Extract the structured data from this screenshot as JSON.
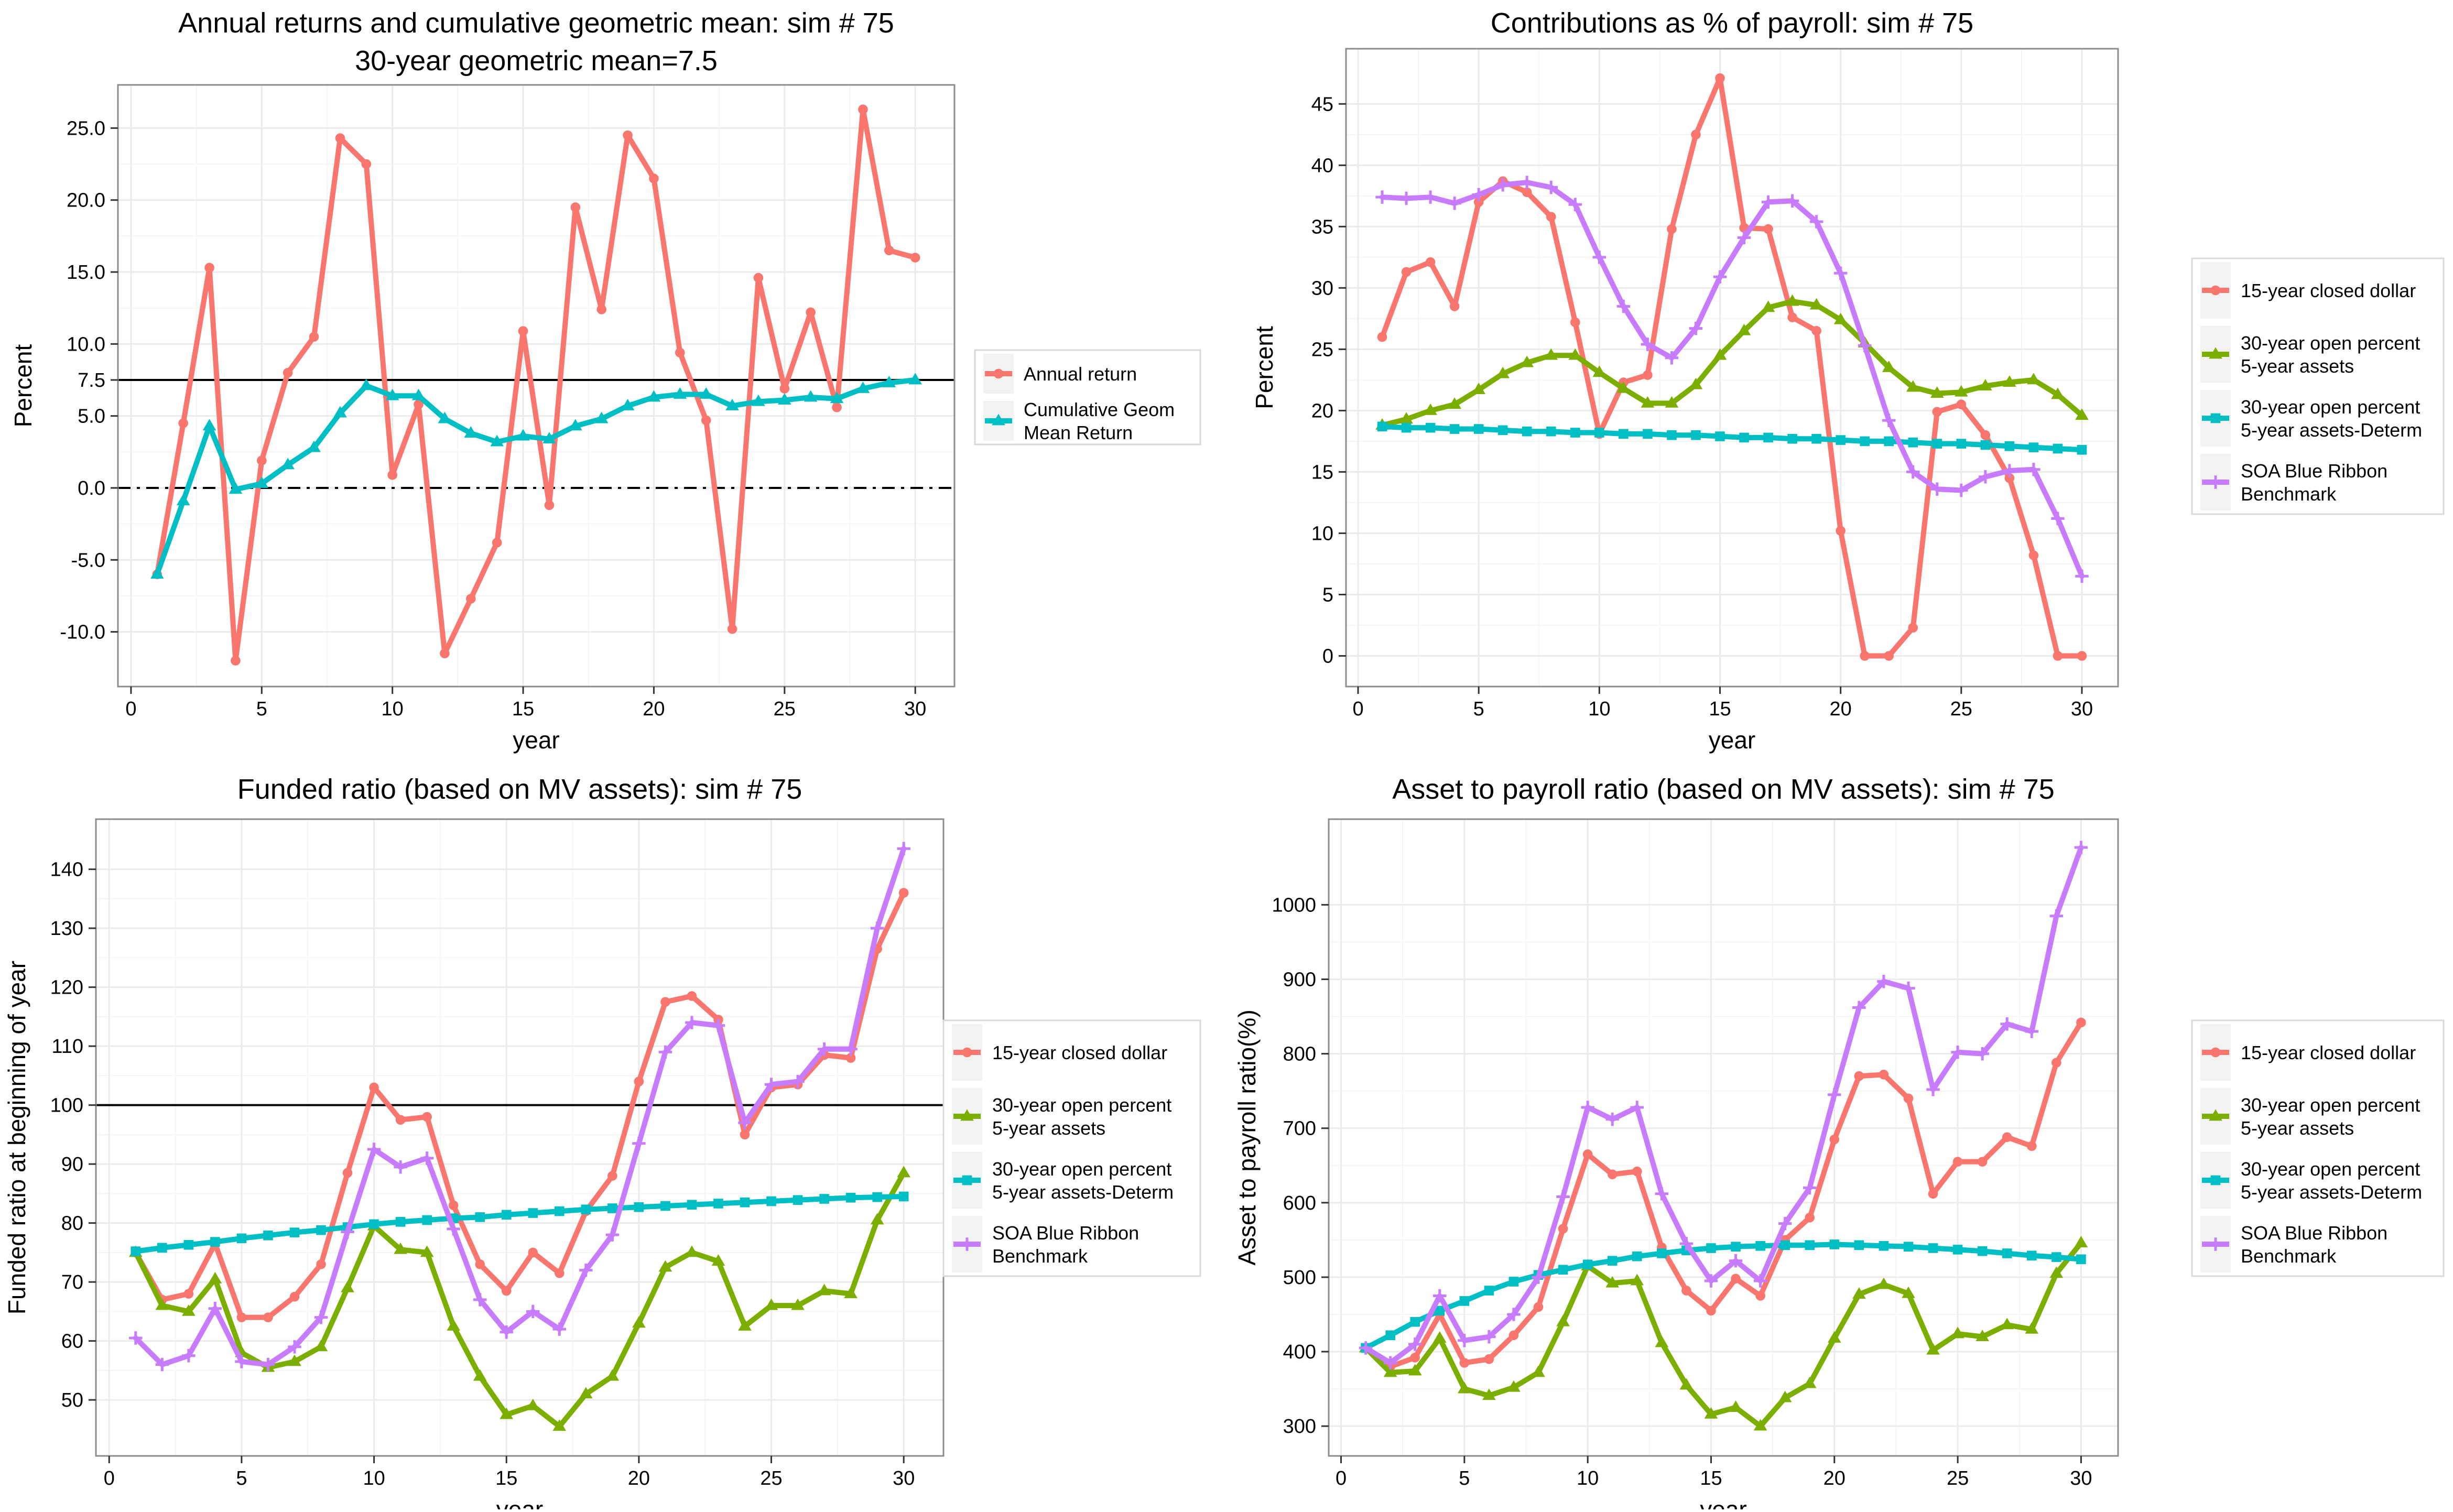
{
  "colors": {
    "red": "#F8766D",
    "green": "#7CAE00",
    "cyan": "#00BFC4",
    "purple": "#C77CFF",
    "panel_border": "#8c8c8c",
    "grid_major": "#ebebeb",
    "grid_minor": "#f5f5f5"
  },
  "chart_data": [
    {
      "type": "line",
      "title": "Annual returns and cumulative geometric mean: sim # 75",
      "subtitle": "30-year geometric mean=7.5",
      "xlabel": "year",
      "ylabel": "Percent",
      "xlim": [
        -0.5,
        31.5
      ],
      "ylim": [
        -13.8,
        28.0
      ],
      "x_ticks": [
        0,
        5,
        10,
        15,
        20,
        25,
        30
      ],
      "y_ticks": [
        -10,
        -5,
        0,
        5,
        7.5,
        10,
        15,
        20,
        25
      ],
      "y_tick_labels": [
        "-10.0",
        "-5.0",
        "0.0",
        "5.0",
        "7.5",
        "10.0",
        "15.0",
        "20.0",
        "25.0"
      ],
      "grid": true,
      "legend_position": "right",
      "reference_lines": [
        {
          "y": 7.5,
          "style": "solid"
        },
        {
          "y": 0,
          "style": "dashdot"
        }
      ],
      "x": [
        1,
        2,
        3,
        4,
        5,
        6,
        7,
        8,
        9,
        10,
        11,
        12,
        13,
        14,
        15,
        16,
        17,
        18,
        19,
        20,
        21,
        22,
        23,
        24,
        25,
        26,
        27,
        28,
        29,
        30
      ],
      "series": [
        {
          "name": "Annual return",
          "color": "red",
          "marker": "circle",
          "values": [
            -6.0,
            4.5,
            15.3,
            -12.0,
            1.9,
            8.0,
            10.5,
            24.3,
            22.5,
            0.9,
            5.8,
            -11.5,
            -7.7,
            -3.8,
            10.9,
            -1.2,
            19.5,
            12.4,
            24.5,
            21.5,
            9.4,
            4.7,
            -9.8,
            14.6,
            6.9,
            12.2,
            5.6,
            26.3,
            16.5,
            16.0
          ]
        },
        {
          "name": "Cumulative Geom Mean Return",
          "color": "cyan",
          "marker": "triangle",
          "values": [
            -6.0,
            -0.9,
            4.3,
            -0.1,
            0.3,
            1.6,
            2.8,
            5.2,
            7.1,
            6.4,
            6.4,
            4.8,
            3.8,
            3.2,
            3.6,
            3.4,
            4.3,
            4.8,
            5.7,
            6.3,
            6.5,
            6.5,
            5.7,
            6.0,
            6.1,
            6.3,
            6.2,
            6.9,
            7.3,
            7.5
          ]
        }
      ],
      "legend_labels": [
        "Annual return",
        "Cumulative Geom\nMean Return"
      ]
    },
    {
      "type": "line",
      "title": "Contributions as % of payroll: sim # 75",
      "xlabel": "year",
      "ylabel": "Percent",
      "xlim": [
        -0.5,
        31.5
      ],
      "ylim": [
        -2.5,
        49.5
      ],
      "x_ticks": [
        0,
        5,
        10,
        15,
        20,
        25,
        30
      ],
      "y_ticks": [
        0,
        5,
        10,
        15,
        20,
        25,
        30,
        35,
        40,
        45
      ],
      "y_tick_labels": [
        "0",
        "5",
        "10",
        "15",
        "20",
        "25",
        "30",
        "35",
        "40",
        "45"
      ],
      "grid": true,
      "legend_position": "right",
      "reference_lines": [],
      "x": [
        1,
        2,
        3,
        4,
        5,
        6,
        7,
        8,
        9,
        10,
        11,
        12,
        13,
        14,
        15,
        16,
        17,
        18,
        19,
        20,
        21,
        22,
        23,
        24,
        25,
        26,
        27,
        28,
        29,
        30
      ],
      "series": [
        {
          "name": "15-year closed dollar",
          "color": "red",
          "marker": "circle",
          "values": [
            26.0,
            31.3,
            32.1,
            28.5,
            37.0,
            38.7,
            37.8,
            35.8,
            27.2,
            18.1,
            22.3,
            22.9,
            34.8,
            42.5,
            47.1,
            34.9,
            34.8,
            27.6,
            26.5,
            10.2,
            0.0,
            0.0,
            2.3,
            19.9,
            20.5,
            18.0,
            14.5,
            8.2,
            0.0,
            0.0
          ]
        },
        {
          "name": "30-year open percent 5-year assets",
          "color": "green",
          "marker": "triangle",
          "values": [
            18.8,
            19.3,
            20.0,
            20.5,
            21.7,
            23.0,
            23.9,
            24.5,
            24.5,
            23.1,
            21.8,
            20.6,
            20.6,
            22.1,
            24.5,
            26.5,
            28.4,
            28.9,
            28.6,
            27.4,
            25.5,
            23.5,
            21.9,
            21.4,
            21.5,
            22.0,
            22.3,
            22.5,
            21.3,
            19.6
          ]
        },
        {
          "name": "30-year open percent 5-year assets-Determ",
          "color": "cyan",
          "marker": "square",
          "values": [
            18.7,
            18.6,
            18.6,
            18.5,
            18.5,
            18.4,
            18.3,
            18.3,
            18.2,
            18.2,
            18.1,
            18.1,
            18.0,
            18.0,
            17.9,
            17.8,
            17.8,
            17.7,
            17.7,
            17.6,
            17.5,
            17.5,
            17.4,
            17.3,
            17.3,
            17.2,
            17.1,
            17.0,
            16.9,
            16.8
          ]
        },
        {
          "name": "SOA Blue Ribbon Benchmark",
          "color": "purple",
          "marker": "plus",
          "values": [
            37.4,
            37.3,
            37.4,
            36.9,
            37.6,
            38.4,
            38.6,
            38.2,
            36.8,
            32.5,
            28.5,
            25.4,
            24.3,
            26.7,
            30.9,
            34.1,
            37.0,
            37.1,
            35.4,
            31.2,
            25.3,
            19.2,
            15.0,
            13.6,
            13.5,
            14.6,
            15.1,
            15.2,
            11.2,
            6.5
          ]
        }
      ],
      "legend_labels": [
        "15-year closed dollar",
        "30-year open percent\n 5-year assets",
        "30-year open percent\n 5-year assets-Determ",
        "SOA Blue Ribbon\n Benchmark"
      ]
    },
    {
      "type": "line",
      "title": "Funded ratio (based on MV assets): sim # 75",
      "xlabel": "year",
      "ylabel": "Funded ratio at beginning of year",
      "xlim": [
        -0.5,
        31.5
      ],
      "ylim": [
        40.5,
        148.5
      ],
      "x_ticks": [
        0,
        5,
        10,
        15,
        20,
        25,
        30
      ],
      "y_ticks": [
        50,
        60,
        70,
        80,
        90,
        100,
        110,
        120,
        130,
        140
      ],
      "y_tick_labels": [
        "50",
        "60",
        "70",
        "80",
        "90",
        "100",
        "110",
        "120",
        "130",
        "140"
      ],
      "grid": true,
      "legend_position": "right",
      "reference_lines": [
        {
          "y": 100,
          "style": "solid"
        }
      ],
      "x": [
        1,
        2,
        3,
        4,
        5,
        6,
        7,
        8,
        9,
        10,
        11,
        12,
        13,
        14,
        15,
        16,
        17,
        18,
        19,
        20,
        21,
        22,
        23,
        24,
        25,
        26,
        27,
        28,
        29,
        30
      ],
      "series": [
        {
          "name": "15-year closed dollar",
          "color": "red",
          "marker": "circle",
          "values": [
            75.0,
            67.0,
            68.0,
            76.5,
            64.0,
            64.0,
            67.5,
            73.0,
            88.5,
            103.0,
            97.5,
            98.0,
            83.0,
            73.0,
            68.5,
            75.0,
            71.5,
            82.0,
            88.0,
            104.0,
            117.5,
            118.5,
            114.5,
            95.0,
            103.0,
            103.5,
            108.5,
            108.0,
            126.5,
            136.0
          ]
        },
        {
          "name": "30-year open percent 5-year assets",
          "color": "green",
          "marker": "triangle",
          "values": [
            75.0,
            66.0,
            65.0,
            70.5,
            58.0,
            55.5,
            56.5,
            59.0,
            69.0,
            79.5,
            75.5,
            75.0,
            62.5,
            54.0,
            47.5,
            49.0,
            45.5,
            51.0,
            54.0,
            63.0,
            72.5,
            75.0,
            73.5,
            62.5,
            66.0,
            66.0,
            68.5,
            68.0,
            80.5,
            88.5
          ]
        },
        {
          "name": "30-year open percent 5-year assets-Determ",
          "color": "cyan",
          "marker": "square",
          "values": [
            75.2,
            75.8,
            76.3,
            76.8,
            77.4,
            77.9,
            78.4,
            78.8,
            79.3,
            79.8,
            80.2,
            80.5,
            80.8,
            81.0,
            81.4,
            81.7,
            82.0,
            82.3,
            82.5,
            82.7,
            82.9,
            83.1,
            83.3,
            83.5,
            83.7,
            83.9,
            84.1,
            84.3,
            84.4,
            84.5
          ]
        },
        {
          "name": "SOA Blue Ribbon Benchmark",
          "color": "purple",
          "marker": "plus",
          "values": [
            60.5,
            56.0,
            57.5,
            65.5,
            56.5,
            56.0,
            59.0,
            64.0,
            78.5,
            92.5,
            89.5,
            91.0,
            79.0,
            67.0,
            61.5,
            65.0,
            62.0,
            72.0,
            78.0,
            93.5,
            109.0,
            114.0,
            113.5,
            97.0,
            103.5,
            104.0,
            109.5,
            109.5,
            130.0,
            143.5
          ]
        }
      ],
      "legend_labels": [
        "15-year closed dollar",
        "30-year open percent\n 5-year assets",
        "30-year open percent\n 5-year assets-Determ",
        "SOA Blue Ribbon\n Benchmark"
      ]
    },
    {
      "type": "line",
      "title": "Asset to payroll ratio (based on MV assets): sim # 75",
      "xlabel": "year",
      "ylabel": "Asset to payroll ratio(%)",
      "xlim": [
        -0.5,
        31.5
      ],
      "ylim": [
        260,
        1115
      ],
      "x_ticks": [
        0,
        5,
        10,
        15,
        20,
        25,
        30
      ],
      "y_ticks": [
        300,
        400,
        500,
        600,
        700,
        800,
        900,
        1000
      ],
      "y_tick_labels": [
        "300",
        "400",
        "500",
        "600",
        "700",
        "800",
        "900",
        "1000"
      ],
      "grid": true,
      "legend_position": "right",
      "reference_lines": [],
      "x": [
        1,
        2,
        3,
        4,
        5,
        6,
        7,
        8,
        9,
        10,
        11,
        12,
        13,
        14,
        15,
        16,
        17,
        18,
        19,
        20,
        21,
        22,
        23,
        24,
        25,
        26,
        27,
        28,
        29,
        30
      ],
      "series": [
        {
          "name": "15-year closed dollar",
          "color": "red",
          "marker": "circle",
          "values": [
            405,
            380,
            392,
            450,
            385,
            390,
            422,
            460,
            565,
            665,
            638,
            642,
            540,
            482,
            455,
            498,
            475,
            550,
            580,
            685,
            770,
            772,
            740,
            612,
            655,
            655,
            688,
            676,
            788,
            842
          ]
        },
        {
          "name": "30-year open percent 5-year assets",
          "color": "green",
          "marker": "triangle",
          "values": [
            405,
            372,
            374,
            418,
            350,
            341,
            352,
            372,
            440,
            515,
            492,
            495,
            412,
            355,
            316,
            325,
            300,
            338,
            357,
            418,
            477,
            490,
            478,
            402,
            424,
            420,
            436,
            430,
            505,
            546
          ]
        },
        {
          "name": "30-year open percent 5-year assets-Determ",
          "color": "cyan",
          "marker": "square",
          "values": [
            405,
            422,
            440,
            455,
            468,
            482,
            494,
            503,
            510,
            517,
            522,
            528,
            532,
            536,
            539,
            541,
            542,
            543,
            543,
            544,
            543,
            542,
            541,
            539,
            537,
            535,
            532,
            529,
            527,
            524
          ]
        },
        {
          "name": "SOA Blue Ribbon Benchmark",
          "color": "purple",
          "marker": "plus",
          "values": [
            405,
            385,
            410,
            475,
            415,
            420,
            450,
            500,
            608,
            728,
            712,
            728,
            612,
            545,
            495,
            522,
            495,
            572,
            620,
            745,
            862,
            897,
            888,
            752,
            802,
            800,
            840,
            830,
            985,
            1077
          ]
        }
      ],
      "legend_labels": [
        "15-year closed dollar",
        "30-year open percent\n 5-year assets",
        "30-year open percent\n 5-year assets-Determ",
        "SOA Blue Ribbon\n Benchmark"
      ]
    }
  ]
}
